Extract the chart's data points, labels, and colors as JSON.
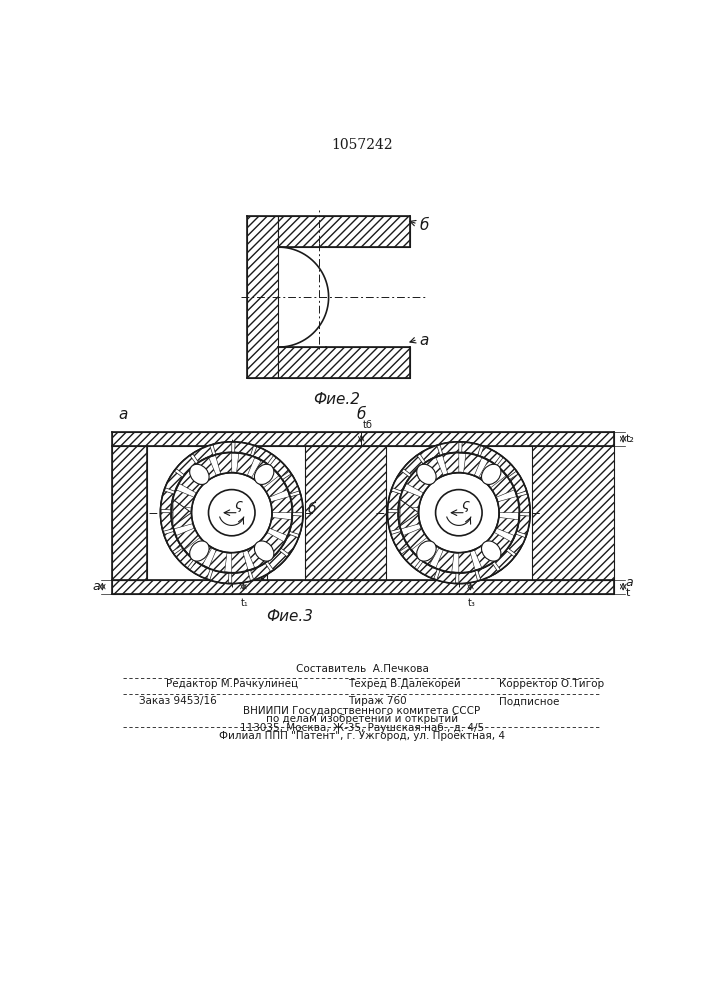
{
  "patent_number": "1057242",
  "fig2_caption": "Фие.2",
  "fig3_caption": "Фие.3",
  "line_color": "#1a1a1a",
  "label_a": "а",
  "label_b": "б",
  "label_s": "ς",
  "footer_line1": "Составитель  А.Печкова",
  "footer_line2_left": "Редактор М.Рачкулинец",
  "footer_line2_mid": "Техред В.Далекорей",
  "footer_line2_right": "Корректор О.Тигор",
  "footer_line3_left": "Заказ 9453/16",
  "footer_line3_mid": "Тираж 760",
  "footer_line3_right": "Подписное",
  "footer_line4": "ВНИИПИ Государственного комитета СССР",
  "footer_line5": "по делам изобретений и открытий",
  "footer_line6": "113035, Москва, Ж-35, Раушская наб., д. 4/5",
  "footer_line7": "Филиал ППП \"Патент\", г. Ужгород, ул. Проектная, 4"
}
